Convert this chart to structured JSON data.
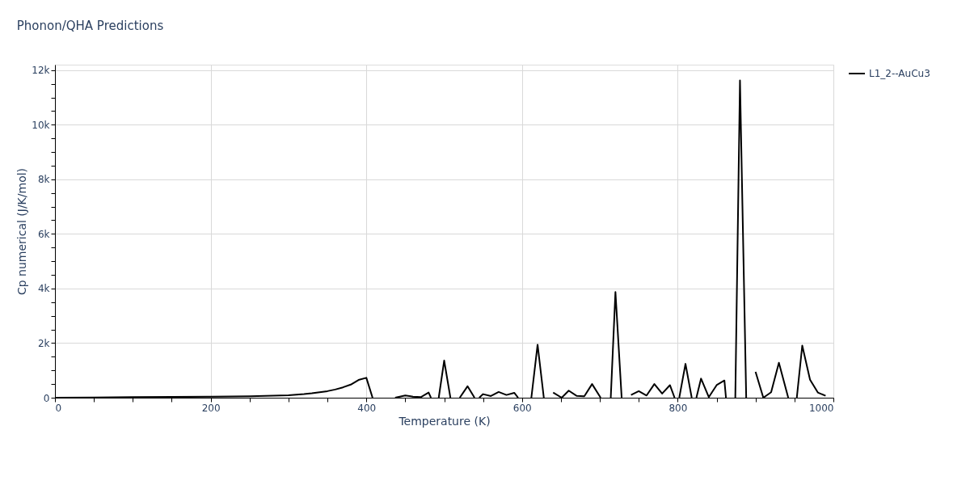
{
  "chart_data": {
    "type": "line",
    "title": "Phonon/QHA Predictions",
    "xlabel": "Temperature (K)",
    "ylabel": "Cp numerical (J/K/mol)",
    "x": [
      0,
      50,
      100,
      150,
      200,
      250,
      300,
      310,
      320,
      330,
      340,
      350,
      360,
      370,
      380,
      390,
      400,
      408,
      420,
      437,
      450,
      460,
      470,
      480,
      483,
      488,
      493,
      500,
      508,
      514,
      520,
      530,
      539,
      541,
      545,
      550,
      560,
      570,
      580,
      590,
      595,
      603,
      612,
      620,
      628,
      634,
      640,
      651,
      660,
      670,
      680,
      690,
      701,
      707,
      714,
      720,
      728,
      734,
      740,
      750,
      760,
      770,
      780,
      790,
      796,
      799,
      802,
      810,
      818,
      821,
      824,
      830,
      840,
      850,
      860,
      862,
      868,
      874,
      880,
      888,
      894,
      900,
      910,
      920,
      930,
      942,
      947,
      953,
      960,
      970,
      980,
      990
    ],
    "series": [
      {
        "name": "L1_2--AuCu3",
        "color": "#000000",
        "values": [
          0,
          10,
          20,
          28,
          35,
          55,
          90,
          110,
          130,
          160,
          200,
          240,
          300,
          380,
          480,
          650,
          730,
          0,
          null,
          0,
          80,
          40,
          20,
          190,
          0,
          null,
          0,
          1360,
          0,
          null,
          0,
          420,
          0,
          null,
          0,
          130,
          60,
          210,
          100,
          180,
          0,
          null,
          0,
          1940,
          0,
          null,
          190,
          0,
          260,
          70,
          50,
          500,
          0,
          null,
          0,
          3870,
          0,
          null,
          100,
          240,
          80,
          500,
          150,
          460,
          0,
          null,
          0,
          1240,
          0,
          null,
          0,
          700,
          20,
          460,
          630,
          0,
          null,
          0,
          11620,
          0,
          null,
          950,
          0,
          200,
          1280,
          0,
          null,
          0,
          1910,
          660,
          190,
          70
        ]
      }
    ],
    "xlim": [
      0,
      1000
    ],
    "xticks": [
      0,
      {
        "value": 50,
        "label": null
      },
      {
        "value": 100,
        "label": null
      },
      {
        "value": 150,
        "label": null
      },
      200,
      {
        "value": 250,
        "label": null
      },
      {
        "value": 300,
        "label": null
      },
      {
        "value": 350,
        "label": null
      },
      400,
      {
        "value": 450,
        "label": null
      },
      {
        "value": 500,
        "label": null
      },
      {
        "value": 550,
        "label": null
      },
      600,
      {
        "value": 650,
        "label": null
      },
      {
        "value": 700,
        "label": null
      },
      {
        "value": 750,
        "label": null
      },
      800,
      {
        "value": 850,
        "label": null
      },
      {
        "value": 900,
        "label": null
      },
      {
        "value": 950,
        "label": null
      },
      1000
    ],
    "ylim": [
      0,
      12200
    ],
    "yticks": [
      0,
      {
        "value": 500,
        "label": null
      },
      {
        "value": 1000,
        "label": null
      },
      {
        "value": 1500,
        "label": null
      },
      {
        "value": 2000,
        "label": "2k"
      },
      {
        "value": 2500,
        "label": null
      },
      {
        "value": 3000,
        "label": null
      },
      {
        "value": 3500,
        "label": null
      },
      {
        "value": 4000,
        "label": "4k"
      },
      {
        "value": 4500,
        "label": null
      },
      {
        "value": 5000,
        "label": null
      },
      {
        "value": 5500,
        "label": null
      },
      {
        "value": 6000,
        "label": "6k"
      },
      {
        "value": 6500,
        "label": null
      },
      {
        "value": 7000,
        "label": null
      },
      {
        "value": 7500,
        "label": null
      },
      {
        "value": 8000,
        "label": "8k"
      },
      {
        "value": 8500,
        "label": null
      },
      {
        "value": 9000,
        "label": null
      },
      {
        "value": 9500,
        "label": null
      },
      {
        "value": 10000,
        "label": "10k"
      },
      {
        "value": 10500,
        "label": null
      },
      {
        "value": 11000,
        "label": null
      },
      {
        "value": 11500,
        "label": null
      },
      {
        "value": 12000,
        "label": "12k"
      }
    ],
    "grid": true,
    "legend": "top right",
    "marker": "none",
    "line_style": "solid"
  }
}
